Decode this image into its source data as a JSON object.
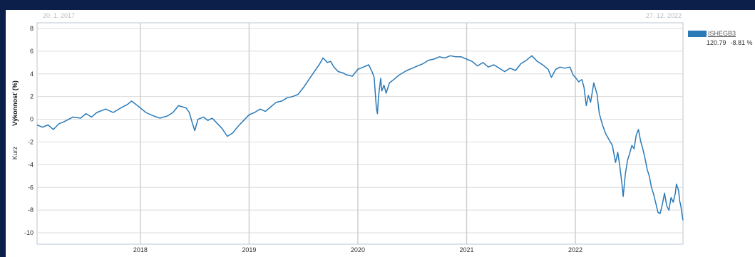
{
  "chart_data": {
    "type": "line",
    "date_start": "20. 1. 2017",
    "date_end": "27. 12. 2022",
    "ylabel": "Výkonnosť (%)",
    "ylabel2": "Kurz",
    "ylim": [
      -11,
      8.5
    ],
    "yticks": [
      8,
      6,
      4,
      2,
      0,
      -2,
      -4,
      -6,
      -8,
      -10
    ],
    "xlim": [
      2017.05,
      2022.99
    ],
    "xticks": [
      {
        "label": "2018",
        "x": 2018.0
      },
      {
        "label": "2019",
        "x": 2019.0
      },
      {
        "label": "2020",
        "x": 2020.0
      },
      {
        "label": "2021",
        "x": 2021.0
      },
      {
        "label": "2022",
        "x": 2022.0
      }
    ],
    "grid": true,
    "legend_position": "right",
    "series": [
      {
        "name": "ISHEGB3",
        "color": "#2a7ab8",
        "last_value": "120.79",
        "change": "-8.81 %",
        "points": [
          [
            2017.05,
            -0.5
          ],
          [
            2017.1,
            -0.7
          ],
          [
            2017.15,
            -0.5
          ],
          [
            2017.2,
            -0.9
          ],
          [
            2017.25,
            -0.4
          ],
          [
            2017.3,
            -0.2
          ],
          [
            2017.38,
            0.2
          ],
          [
            2017.45,
            0.1
          ],
          [
            2017.5,
            0.5
          ],
          [
            2017.55,
            0.2
          ],
          [
            2017.6,
            0.6
          ],
          [
            2017.68,
            0.9
          ],
          [
            2017.75,
            0.6
          ],
          [
            2017.82,
            1.0
          ],
          [
            2017.88,
            1.3
          ],
          [
            2017.92,
            1.6
          ],
          [
            2017.96,
            1.3
          ],
          [
            2018.0,
            1.0
          ],
          [
            2018.05,
            0.6
          ],
          [
            2018.12,
            0.3
          ],
          [
            2018.18,
            0.1
          ],
          [
            2018.25,
            0.3
          ],
          [
            2018.3,
            0.6
          ],
          [
            2018.35,
            1.2
          ],
          [
            2018.42,
            1.0
          ],
          [
            2018.45,
            0.6
          ],
          [
            2018.48,
            -0.4
          ],
          [
            2018.5,
            -1.0
          ],
          [
            2018.53,
            0.0
          ],
          [
            2018.58,
            0.2
          ],
          [
            2018.62,
            -0.1
          ],
          [
            2018.66,
            0.1
          ],
          [
            2018.7,
            -0.3
          ],
          [
            2018.75,
            -0.8
          ],
          [
            2018.8,
            -1.5
          ],
          [
            2018.85,
            -1.2
          ],
          [
            2018.9,
            -0.6
          ],
          [
            2018.95,
            -0.1
          ],
          [
            2019.0,
            0.4
          ],
          [
            2019.05,
            0.6
          ],
          [
            2019.1,
            0.9
          ],
          [
            2019.15,
            0.7
          ],
          [
            2019.2,
            1.1
          ],
          [
            2019.25,
            1.5
          ],
          [
            2019.3,
            1.6
          ],
          [
            2019.35,
            1.9
          ],
          [
            2019.4,
            2.0
          ],
          [
            2019.45,
            2.2
          ],
          [
            2019.5,
            2.8
          ],
          [
            2019.55,
            3.5
          ],
          [
            2019.6,
            4.2
          ],
          [
            2019.65,
            4.9
          ],
          [
            2019.68,
            5.4
          ],
          [
            2019.72,
            5.0
          ],
          [
            2019.75,
            5.1
          ],
          [
            2019.78,
            4.6
          ],
          [
            2019.82,
            4.2
          ],
          [
            2019.86,
            4.1
          ],
          [
            2019.9,
            3.9
          ],
          [
            2019.95,
            3.8
          ],
          [
            2020.0,
            4.4
          ],
          [
            2020.05,
            4.6
          ],
          [
            2020.1,
            4.8
          ],
          [
            2020.13,
            4.2
          ],
          [
            2020.15,
            3.7
          ],
          [
            2020.17,
            1.0
          ],
          [
            2020.18,
            0.5
          ],
          [
            2020.19,
            2.0
          ],
          [
            2020.21,
            3.6
          ],
          [
            2020.22,
            2.5
          ],
          [
            2020.24,
            3.0
          ],
          [
            2020.26,
            2.3
          ],
          [
            2020.29,
            3.2
          ],
          [
            2020.33,
            3.5
          ],
          [
            2020.38,
            3.9
          ],
          [
            2020.45,
            4.3
          ],
          [
            2020.5,
            4.5
          ],
          [
            2020.55,
            4.7
          ],
          [
            2020.6,
            4.9
          ],
          [
            2020.65,
            5.2
          ],
          [
            2020.7,
            5.3
          ],
          [
            2020.75,
            5.5
          ],
          [
            2020.8,
            5.4
          ],
          [
            2020.85,
            5.6
          ],
          [
            2020.9,
            5.5
          ],
          [
            2020.95,
            5.5
          ],
          [
            2021.0,
            5.3
          ],
          [
            2021.05,
            5.1
          ],
          [
            2021.1,
            4.7
          ],
          [
            2021.15,
            5.0
          ],
          [
            2021.2,
            4.6
          ],
          [
            2021.25,
            4.8
          ],
          [
            2021.3,
            4.5
          ],
          [
            2021.35,
            4.2
          ],
          [
            2021.4,
            4.5
          ],
          [
            2021.45,
            4.3
          ],
          [
            2021.5,
            4.9
          ],
          [
            2021.55,
            5.2
          ],
          [
            2021.6,
            5.6
          ],
          [
            2021.65,
            5.1
          ],
          [
            2021.7,
            4.8
          ],
          [
            2021.75,
            4.4
          ],
          [
            2021.78,
            3.7
          ],
          [
            2021.82,
            4.4
          ],
          [
            2021.86,
            4.6
          ],
          [
            2021.9,
            4.5
          ],
          [
            2021.95,
            4.6
          ],
          [
            2021.98,
            3.9
          ],
          [
            2022.0,
            3.7
          ],
          [
            2022.03,
            3.3
          ],
          [
            2022.06,
            3.5
          ],
          [
            2022.08,
            2.8
          ],
          [
            2022.1,
            1.2
          ],
          [
            2022.12,
            2.1
          ],
          [
            2022.14,
            1.5
          ],
          [
            2022.17,
            3.2
          ],
          [
            2022.2,
            2.2
          ],
          [
            2022.22,
            0.5
          ],
          [
            2022.25,
            -0.5
          ],
          [
            2022.28,
            -1.3
          ],
          [
            2022.31,
            -1.8
          ],
          [
            2022.34,
            -2.3
          ],
          [
            2022.37,
            -3.8
          ],
          [
            2022.39,
            -2.9
          ],
          [
            2022.41,
            -4.2
          ],
          [
            2022.43,
            -5.8
          ],
          [
            2022.44,
            -6.8
          ],
          [
            2022.46,
            -4.8
          ],
          [
            2022.48,
            -3.6
          ],
          [
            2022.5,
            -3.0
          ],
          [
            2022.52,
            -2.3
          ],
          [
            2022.54,
            -2.6
          ],
          [
            2022.56,
            -1.4
          ],
          [
            2022.58,
            -0.9
          ],
          [
            2022.6,
            -1.9
          ],
          [
            2022.62,
            -2.6
          ],
          [
            2022.64,
            -3.4
          ],
          [
            2022.66,
            -4.4
          ],
          [
            2022.68,
            -5.0
          ],
          [
            2022.7,
            -6.0
          ],
          [
            2022.72,
            -6.6
          ],
          [
            2022.74,
            -7.4
          ],
          [
            2022.76,
            -8.2
          ],
          [
            2022.78,
            -8.3
          ],
          [
            2022.8,
            -7.5
          ],
          [
            2022.82,
            -6.5
          ],
          [
            2022.84,
            -7.6
          ],
          [
            2022.86,
            -8.0
          ],
          [
            2022.88,
            -6.9
          ],
          [
            2022.9,
            -7.3
          ],
          [
            2022.92,
            -6.5
          ],
          [
            2022.93,
            -5.7
          ],
          [
            2022.95,
            -6.3
          ],
          [
            2022.96,
            -7.2
          ],
          [
            2022.97,
            -7.6
          ],
          [
            2022.98,
            -8.3
          ],
          [
            2022.99,
            -8.9
          ]
        ]
      }
    ]
  }
}
